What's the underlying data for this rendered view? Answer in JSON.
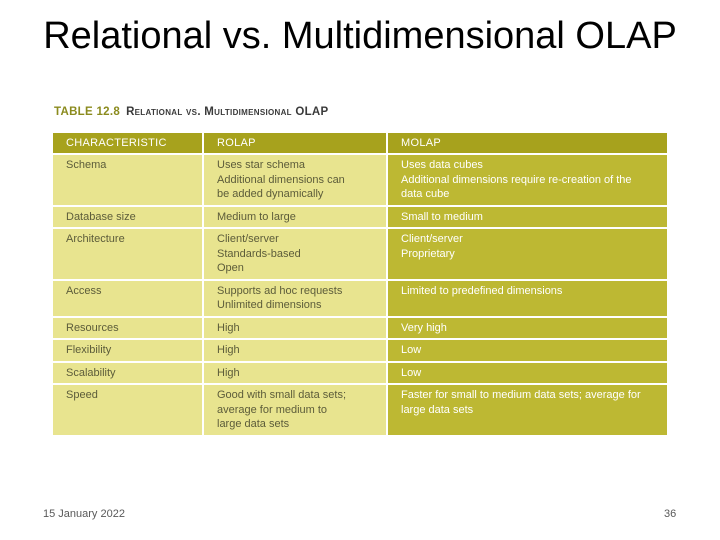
{
  "slide": {
    "title": "Relational vs. Multidimensional OLAP",
    "footer_date": "15 January 2022",
    "page_number": "36"
  },
  "table": {
    "caption_number": "TABLE 12.8",
    "caption_text": "Relational vs. Multidimensional OLAP",
    "headers": [
      "CHARACTERISTIC",
      "ROLAP",
      "MOLAP"
    ],
    "rows": [
      {
        "characteristic": [
          "Schema"
        ],
        "rolap": [
          "Uses star schema",
          "Additional dimensions can",
          "be added dynamically"
        ],
        "molap": [
          "Uses data cubes",
          "Additional dimensions require re-creation of the",
          "data cube"
        ]
      },
      {
        "characteristic": [
          "Database size"
        ],
        "rolap": [
          "Medium to large"
        ],
        "molap": [
          "Small to medium"
        ]
      },
      {
        "characteristic": [
          "Architecture"
        ],
        "rolap": [
          "Client/server",
          "Standards-based",
          "Open"
        ],
        "molap": [
          "Client/server",
          "Proprietary"
        ]
      },
      {
        "characteristic": [
          "Access"
        ],
        "rolap": [
          "Supports ad hoc requests",
          "Unlimited dimensions"
        ],
        "molap": [
          "Limited to predefined dimensions"
        ]
      },
      {
        "characteristic": [
          "Resources"
        ],
        "rolap": [
          "High"
        ],
        "molap": [
          "Very high"
        ]
      },
      {
        "characteristic": [
          "Flexibility"
        ],
        "rolap": [
          "High"
        ],
        "molap": [
          "Low"
        ]
      },
      {
        "characteristic": [
          "Scalability"
        ],
        "rolap": [
          "High"
        ],
        "molap": [
          "Low"
        ]
      },
      {
        "characteristic": [
          "Speed"
        ],
        "rolap": [
          "Good with small data sets;",
          "average for medium to",
          "large data sets"
        ],
        "molap": [
          "Faster for small to medium data sets; average for",
          "large data sets"
        ]
      }
    ]
  },
  "colors": {
    "header_bg": "#a7a21d",
    "light_cell_bg": "#e8e48f",
    "dark_cell_bg": "#bdb833"
  }
}
